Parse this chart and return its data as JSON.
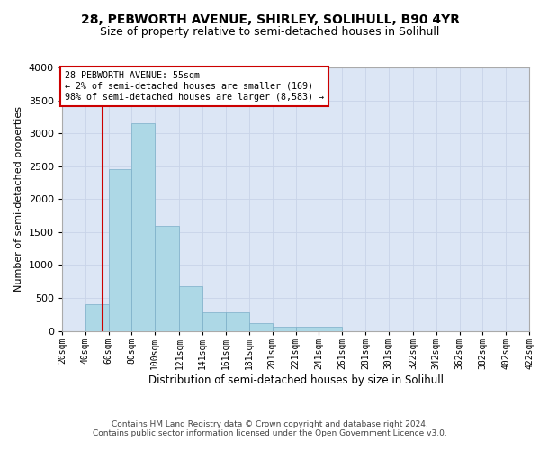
{
  "title_line1": "28, PEBWORTH AVENUE, SHIRLEY, SOLIHULL, B90 4YR",
  "title_line2": "Size of property relative to semi-detached houses in Solihull",
  "xlabel": "Distribution of semi-detached houses by size in Solihull",
  "ylabel": "Number of semi-detached properties",
  "footer_line1": "Contains HM Land Registry data © Crown copyright and database right 2024.",
  "footer_line2": "Contains public sector information licensed under the Open Government Licence v3.0.",
  "annotation_title": "28 PEBWORTH AVENUE: 55sqm",
  "annotation_line1": "← 2% of semi-detached houses are smaller (169)",
  "annotation_line2": "98% of semi-detached houses are larger (8,583) →",
  "property_size_sqm": 55,
  "bin_edges": [
    20,
    40,
    60,
    80,
    100,
    121,
    141,
    161,
    181,
    201,
    221,
    241,
    261,
    281,
    301,
    322,
    342,
    362,
    382,
    402,
    422
  ],
  "bar_heights": [
    0,
    400,
    2450,
    3150,
    1600,
    680,
    280,
    280,
    110,
    65,
    60,
    55,
    0,
    0,
    0,
    0,
    0,
    0,
    0,
    0
  ],
  "bar_color": "#add8e6",
  "bar_edge_color": "#7baec8",
  "vline_color": "#cc0000",
  "vline_x": 55,
  "annotation_box_color": "#ffffff",
  "annotation_box_edge": "#cc0000",
  "ylim": [
    0,
    4000
  ],
  "yticks": [
    0,
    500,
    1000,
    1500,
    2000,
    2500,
    3000,
    3500,
    4000
  ],
  "grid_color": "#c8d4e8",
  "bg_color": "#dce6f5",
  "title_fontsize": 10,
  "subtitle_fontsize": 9,
  "tick_labels": [
    "20sqm",
    "40sqm",
    "60sqm",
    "80sqm",
    "100sqm",
    "121sqm",
    "141sqm",
    "161sqm",
    "181sqm",
    "201sqm",
    "221sqm",
    "241sqm",
    "261sqm",
    "281sqm",
    "301sqm",
    "322sqm",
    "342sqm",
    "362sqm",
    "382sqm",
    "402sqm",
    "422sqm"
  ]
}
